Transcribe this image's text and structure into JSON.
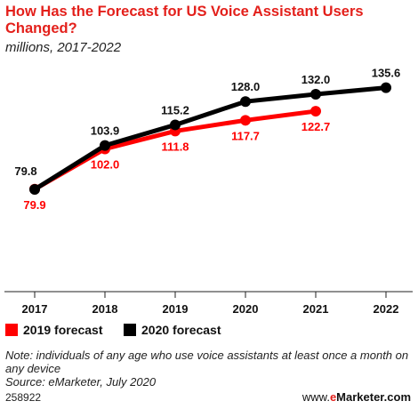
{
  "chart_data": {
    "type": "line",
    "title": "How Has the Forecast for US Voice Assistant Users Changed?",
    "subtitle": "millions, 2017-2022",
    "categories": [
      "2017",
      "2018",
      "2019",
      "2020",
      "2021",
      "2022"
    ],
    "ylim": [
      0,
      150
    ],
    "grid": false,
    "legend_position": "bottom-left",
    "series": [
      {
        "name": "2019 forecast",
        "color": "#ff0000",
        "values": [
          79.9,
          102.0,
          111.8,
          117.7,
          122.7,
          null
        ],
        "labels": [
          "79.9",
          "102.0",
          "111.8",
          "117.7",
          "122.7",
          ""
        ]
      },
      {
        "name": "2020 forecast",
        "color": "#000000",
        "values": [
          79.8,
          103.9,
          115.2,
          128.0,
          132.0,
          135.6
        ],
        "labels": [
          "79.8",
          "103.9",
          "115.2",
          "128.0",
          "132.0",
          "135.6"
        ]
      }
    ]
  },
  "footnote": {
    "note": "Note: individuals of any age who use voice assistants at least once a month on any device",
    "source": "Source: eMarketer, July 2020"
  },
  "chart_id": "258922",
  "brand": {
    "prefix": "www.",
    "e": "e",
    "rest": "Marketer",
    "suffix": ".com"
  }
}
